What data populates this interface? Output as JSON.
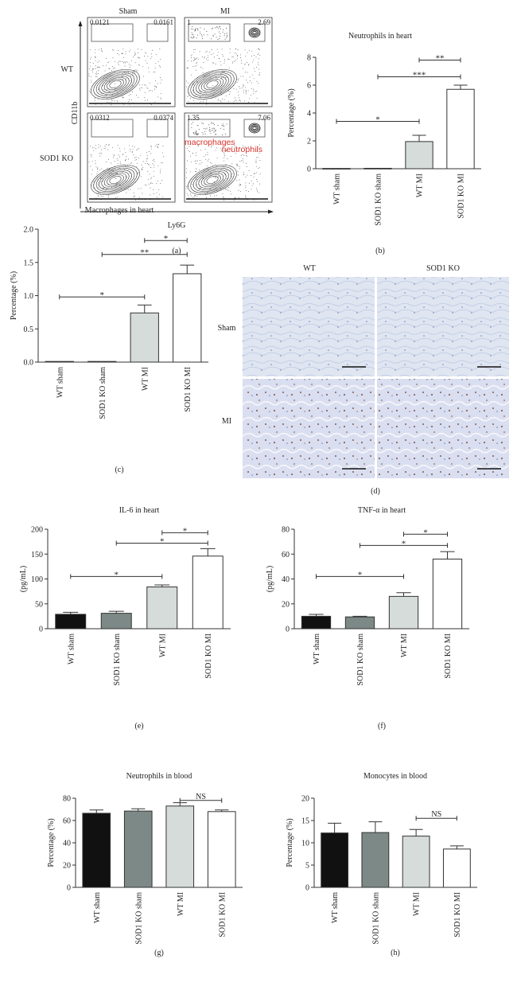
{
  "panel_labels": [
    "(a)",
    "(b)",
    "(c)",
    "(d)",
    "(e)",
    "(f)",
    "(g)",
    "(h)"
  ],
  "flow": {
    "columns": [
      "Sham",
      "MI"
    ],
    "rows": [
      "WT",
      "SOD1 KO"
    ],
    "y_axis": "CD11b",
    "x_axis": "Ly6G",
    "gates": [
      [
        "0.0121",
        "0.0161"
      ],
      [
        "1",
        "2.69"
      ],
      [
        "0.0312",
        "0.0374"
      ],
      [
        "1.35",
        "7.06"
      ]
    ],
    "annotations": [
      "macrophages",
      "neutrophils"
    ],
    "annotation_color": "#d9332e"
  },
  "histology": {
    "columns": [
      "WT",
      "SOD1 KO"
    ],
    "rows": [
      "Sham",
      "MI"
    ]
  },
  "colors": {
    "WT sham": "#111111",
    "SOD1 KO sham": "#7d8987",
    "WT MI": "#d5dcd9",
    "SOD1 KO MI": "#ffffff"
  },
  "chart_data": [
    {
      "id": "b",
      "type": "bar",
      "title": "Neutrophils in heart",
      "ylabel": "Percentage (%)",
      "categories": [
        "WT sham",
        "SOD1 KO sham",
        "WT MI",
        "SOD1 KO MI"
      ],
      "values": [
        0.02,
        0.03,
        1.95,
        5.7
      ],
      "errors": [
        0,
        0,
        0.45,
        0.3
      ],
      "ylim": [
        0,
        8
      ],
      "yticks": [
        "0",
        "2",
        "4",
        "6",
        "8"
      ],
      "significance": [
        {
          "from": 0,
          "to": 2,
          "y": 3.4,
          "label": "*"
        },
        {
          "from": 1,
          "to": 3,
          "y": 6.6,
          "label": "***"
        },
        {
          "from": 2,
          "to": 3,
          "y": 7.8,
          "label": "**"
        }
      ]
    },
    {
      "id": "c",
      "type": "bar",
      "title": "Macrophages in heart",
      "ylabel": "Percentage (%)",
      "categories": [
        "WT sham",
        "SOD1 KO sham",
        "WT MI",
        "SOD1 KO MI"
      ],
      "values": [
        0.01,
        0.01,
        0.74,
        1.33
      ],
      "errors": [
        0,
        0,
        0.12,
        0.13
      ],
      "ylim": [
        0,
        2
      ],
      "yticks": [
        "0.0",
        "0.5",
        "1.0",
        "1.5",
        "2.0"
      ],
      "significance": [
        {
          "from": 0,
          "to": 2,
          "y": 0.98,
          "label": "*"
        },
        {
          "from": 1,
          "to": 3,
          "y": 1.62,
          "label": "**"
        },
        {
          "from": 2,
          "to": 3,
          "y": 1.83,
          "label": "*"
        }
      ]
    },
    {
      "id": "e",
      "type": "bar",
      "title": "IL-6 in heart",
      "ylabel": "(pg/mL)",
      "categories": [
        "WT sham",
        "SOD1 KO sham",
        "WT MI",
        "SOD1 KO MI"
      ],
      "values": [
        29,
        31,
        84,
        146
      ],
      "errors": [
        4,
        4,
        4,
        15
      ],
      "ylim": [
        0,
        200
      ],
      "yticks": [
        "0",
        "50",
        "100",
        "150",
        "200"
      ],
      "significance": [
        {
          "from": 0,
          "to": 2,
          "y": 105,
          "label": "*"
        },
        {
          "from": 1,
          "to": 3,
          "y": 172,
          "label": "*"
        },
        {
          "from": 2,
          "to": 3,
          "y": 193,
          "label": "*"
        }
      ]
    },
    {
      "id": "f",
      "type": "bar",
      "title": "TNF-α in heart",
      "ylabel": "(pg/mL)",
      "categories": [
        "WT sham",
        "SOD1 KO sham",
        "WT MI",
        "SOD1 KO MI"
      ],
      "values": [
        10,
        9.5,
        26,
        56
      ],
      "errors": [
        1.5,
        0.5,
        3,
        6
      ],
      "ylim": [
        0,
        80
      ],
      "yticks": [
        "0",
        "20",
        "40",
        "60",
        "80"
      ],
      "significance": [
        {
          "from": 0,
          "to": 2,
          "y": 42,
          "label": "*"
        },
        {
          "from": 1,
          "to": 3,
          "y": 67,
          "label": "*"
        },
        {
          "from": 2,
          "to": 3,
          "y": 76,
          "label": "*"
        }
      ]
    },
    {
      "id": "g",
      "type": "bar",
      "title": "Neutrophils in blood",
      "ylabel": "Percentage (%)",
      "categories": [
        "WT sham",
        "SOD1 KO sham",
        "WT MI",
        "SOD1 KO MI"
      ],
      "values": [
        66.5,
        68.5,
        73,
        68
      ],
      "errors": [
        3,
        2,
        3,
        1.5
      ],
      "ylim": [
        0,
        80
      ],
      "yticks": [
        "0",
        "20",
        "40",
        "60",
        "80"
      ],
      "significance": [
        {
          "from": 2,
          "to": 3,
          "y": 78,
          "label": "NS"
        }
      ]
    },
    {
      "id": "h",
      "type": "bar",
      "title": "Monocytes in blood",
      "ylabel": "Percentage (%)",
      "categories": [
        "WT sham",
        "SOD1 KO sham",
        "WT MI",
        "SOD1 KO MI"
      ],
      "values": [
        12.2,
        12.3,
        11.5,
        8.6
      ],
      "errors": [
        2.2,
        2.4,
        1.5,
        0.7
      ],
      "ylim": [
        0,
        20
      ],
      "yticks": [
        "0",
        "5",
        "10",
        "15",
        "20"
      ],
      "significance": [
        {
          "from": 2,
          "to": 3,
          "y": 15.5,
          "label": "NS"
        }
      ]
    }
  ]
}
